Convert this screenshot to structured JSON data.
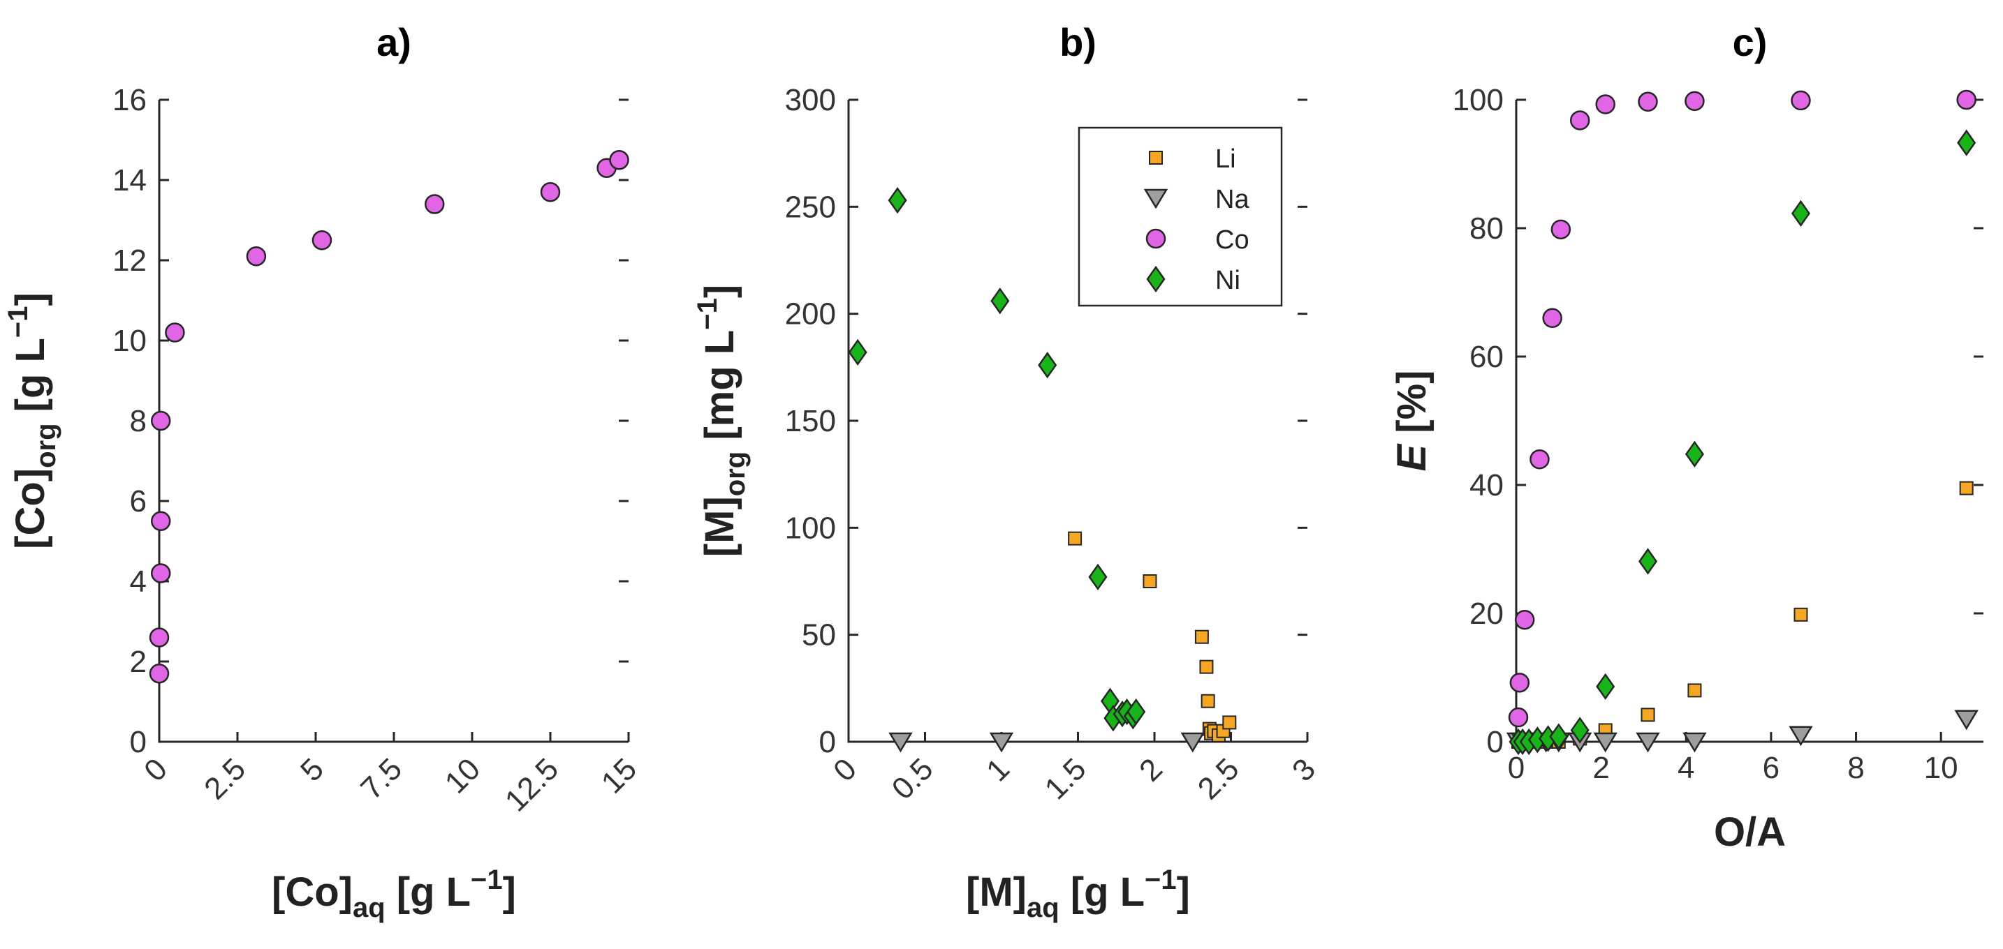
{
  "colors": {
    "Li": "#f5a623",
    "Na": "#9e9e9e",
    "Co": "#e066e6",
    "Ni": "#19b419",
    "edge": "#262626"
  },
  "chart_data": [
    {
      "id": "a",
      "type": "scatter",
      "title": "a)",
      "xlabel": {
        "main": "[Co]",
        "sub": "aq",
        "unit": " [g L",
        "exp": "−1",
        "close": "]"
      },
      "ylabel": {
        "main": "[Co]",
        "sub": "org",
        "unit": " [g L",
        "exp": "−1",
        "close": "]"
      },
      "xlim": [
        0,
        15
      ],
      "ylim": [
        0,
        16
      ],
      "xticks": [
        0,
        2.5,
        5,
        7.5,
        10,
        12.5,
        15
      ],
      "xtick_labels": [
        "0",
        "2.5",
        "5",
        "7.5",
        "10",
        "12.5",
        "15"
      ],
      "yticks": [
        0,
        2,
        4,
        6,
        8,
        10,
        12,
        14,
        16
      ],
      "ytick_labels": [
        "0",
        "2",
        "4",
        "6",
        "8",
        "10",
        "12",
        "14",
        "16"
      ],
      "series": [
        {
          "name": "Co",
          "marker": "circle",
          "x": [
            0.0,
            0.0,
            0.05,
            0.05,
            0.05,
            0.5,
            3.1,
            5.2,
            8.8,
            12.5,
            14.3,
            14.7
          ],
          "y": [
            1.7,
            2.6,
            4.2,
            5.5,
            8.0,
            10.2,
            12.1,
            12.5,
            13.4,
            13.7,
            14.3,
            14.5
          ]
        }
      ]
    },
    {
      "id": "b",
      "type": "scatter",
      "title": "b)",
      "xlabel": {
        "main": "[M]",
        "sub": "aq",
        "unit": " [g L",
        "exp": "−1",
        "close": "]"
      },
      "ylabel": {
        "main": "[M]",
        "sub": "org",
        "unit": " [mg L",
        "exp": "−1",
        "close": "]"
      },
      "xlim": [
        0,
        3
      ],
      "ylim": [
        0,
        300
      ],
      "xticks": [
        0,
        0.5,
        1,
        1.5,
        2,
        2.5,
        3
      ],
      "xtick_labels": [
        "0",
        "0.5",
        "1",
        "1.5",
        "2",
        "2.5",
        "3"
      ],
      "yticks": [
        0,
        50,
        100,
        150,
        200,
        250,
        300
      ],
      "ytick_labels": [
        "0",
        "50",
        "100",
        "150",
        "200",
        "250",
        "300"
      ],
      "legend": {
        "position": "top-right",
        "entries": [
          "Li",
          "Na",
          "Co",
          "Ni"
        ]
      },
      "series": [
        {
          "name": "Li",
          "marker": "square",
          "x": [
            1.48,
            1.97,
            2.31,
            2.34,
            2.35,
            2.36,
            2.37,
            2.39,
            2.42,
            2.45,
            2.49
          ],
          "y": [
            95,
            75,
            49,
            35,
            19,
            6,
            4,
            5,
            3,
            5,
            9
          ]
        },
        {
          "name": "Na",
          "marker": "triangle-down",
          "x": [
            0.34,
            1.0,
            2.25
          ],
          "y": [
            0,
            0,
            0
          ]
        },
        {
          "name": "Co",
          "marker": "circle",
          "x": [],
          "y": []
        },
        {
          "name": "Ni",
          "marker": "diamond",
          "x": [
            0.06,
            0.32,
            0.99,
            1.3,
            1.63,
            1.71,
            1.73,
            1.79,
            1.82,
            1.86,
            1.88
          ],
          "y": [
            182,
            253,
            206,
            176,
            77,
            19,
            11,
            13,
            14,
            12,
            14
          ]
        }
      ]
    },
    {
      "id": "c",
      "type": "scatter",
      "title": "c)",
      "xlabel": {
        "main": "O/A"
      },
      "ylabel": {
        "main": "E",
        "unit": " [%]"
      },
      "xlim": [
        0,
        11
      ],
      "ylim": [
        0,
        100
      ],
      "xticks": [
        0,
        2,
        4,
        6,
        8,
        10
      ],
      "xtick_labels": [
        "0",
        "2",
        "4",
        "6",
        "8",
        "10"
      ],
      "yticks": [
        0,
        20,
        40,
        60,
        80,
        100
      ],
      "ytick_labels": [
        "0",
        "20",
        "40",
        "60",
        "80",
        "100"
      ],
      "series": [
        {
          "name": "Li",
          "marker": "square",
          "x": [
            0.05,
            0.15,
            0.3,
            0.5,
            0.7,
            1.0,
            1.5,
            2.1,
            3.1,
            4.2,
            6.7,
            10.6
          ],
          "y": [
            0,
            0,
            0,
            0,
            0,
            0,
            0.5,
            1.8,
            4.2,
            8.0,
            19.8,
            39.5
          ]
        },
        {
          "name": "Na",
          "marker": "triangle-down",
          "x": [
            0.05,
            0.15,
            0.3,
            0.5,
            0.7,
            1.0,
            1.5,
            2.1,
            3.1,
            4.2,
            6.7,
            10.6
          ],
          "y": [
            0,
            0,
            0,
            0,
            0,
            0,
            0,
            0,
            0,
            0,
            1.0,
            3.5
          ]
        },
        {
          "name": "Co",
          "marker": "circle",
          "x": [
            0.05,
            0.08,
            0.2,
            0.55,
            0.85,
            1.05,
            1.5,
            2.1,
            3.1,
            4.2,
            6.7,
            10.6
          ],
          "y": [
            3.8,
            9.2,
            19.0,
            44.0,
            66.0,
            79.8,
            96.8,
            99.3,
            99.7,
            99.8,
            99.9,
            100
          ]
        },
        {
          "name": "Ni",
          "marker": "diamond",
          "x": [
            0.05,
            0.15,
            0.3,
            0.5,
            0.75,
            1.0,
            1.5,
            2.1,
            3.1,
            4.2,
            6.7,
            10.6
          ],
          "y": [
            0,
            0,
            0,
            0.3,
            0.5,
            0.8,
            1.8,
            8.6,
            28.1,
            44.8,
            82.3,
            93.3
          ]
        }
      ]
    }
  ]
}
